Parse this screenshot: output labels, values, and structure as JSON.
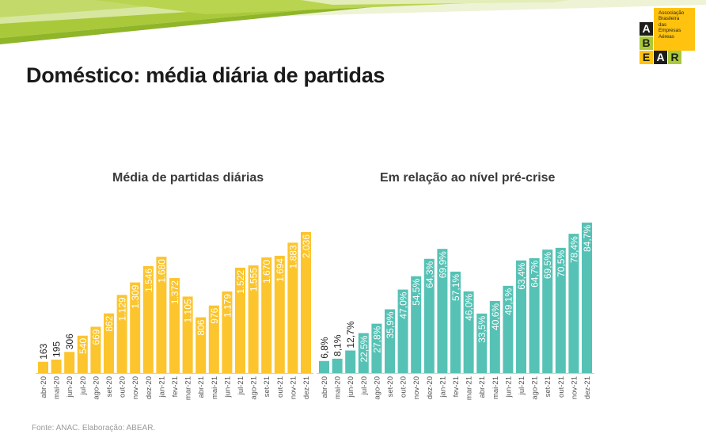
{
  "page_title": "Doméstico: média diária de partidas",
  "logo": {
    "letters": [
      "A",
      "B",
      "E",
      "A",
      "R"
    ],
    "text_lines": [
      "Associação",
      "Brasileira",
      "das",
      "Empresas",
      "Aéreas"
    ]
  },
  "source": "Fonte: ANAC. Elaboração: ABEAR.",
  "colors": {
    "bar_yellow": "#fcc52e",
    "bar_teal": "#56c2b5",
    "banner_green": "#a9c93a"
  },
  "chart_data": [
    {
      "type": "bar",
      "title": "Média de partidas diárias",
      "categories": [
        "abr-20",
        "mai-20",
        "jun-20",
        "jul-20",
        "ago-20",
        "set-20",
        "out-20",
        "nov-20",
        "dez-20",
        "jan-21",
        "fev-21",
        "mar-21",
        "abr-21",
        "mai-21",
        "jun-21",
        "jul-21",
        "ago-21",
        "set-21",
        "out-21",
        "nov-21",
        "dez-21"
      ],
      "values": [
        163,
        195,
        306,
        540,
        669,
        862,
        1129,
        1309,
        1546,
        1680,
        1372,
        1105,
        806,
        976,
        1179,
        1522,
        1555,
        1670,
        1694,
        1883,
        2036
      ],
      "labels": [
        "163",
        "195",
        "306",
        "540",
        "669",
        "862",
        "1.129",
        "1.309",
        "1.546",
        "1.680",
        "1.372",
        "1.105",
        "806",
        "976",
        "1.179",
        "1.522",
        "1.555",
        "1.670",
        "1.694",
        "1.883",
        "2.036"
      ],
      "color": "#fcc52e",
      "grid": false
    },
    {
      "type": "bar",
      "title": "Em relação ao nível pré-crise",
      "categories": [
        "abr-20",
        "mai-20",
        "jun-20",
        "jul-20",
        "ago-20",
        "set-20",
        "out-20",
        "nov-20",
        "dez-20",
        "jan-21",
        "fev-21",
        "mar-21",
        "abr-21",
        "mai-21",
        "jun-21",
        "jul-21",
        "ago-21",
        "set-21",
        "out-21",
        "nov-21",
        "dez-21"
      ],
      "values": [
        6.8,
        8.1,
        12.7,
        22.5,
        27.8,
        35.9,
        47.0,
        54.5,
        64.3,
        69.9,
        57.1,
        46.0,
        33.5,
        40.6,
        49.1,
        63.4,
        64.7,
        69.5,
        70.5,
        78.4,
        84.7
      ],
      "labels": [
        "6,8%",
        "8,1%",
        "12,7%",
        "22,5%",
        "27,8%",
        "35,9%",
        "47,0%",
        "54,5%",
        "64,3%",
        "69,9%",
        "57,1%",
        "46,0%",
        "33,5%",
        "40,6%",
        "49,1%",
        "63,4%",
        "64,7%",
        "69,5%",
        "70,5%",
        "78,4%",
        "84,7%"
      ],
      "color": "#56c2b5",
      "grid": false
    }
  ]
}
